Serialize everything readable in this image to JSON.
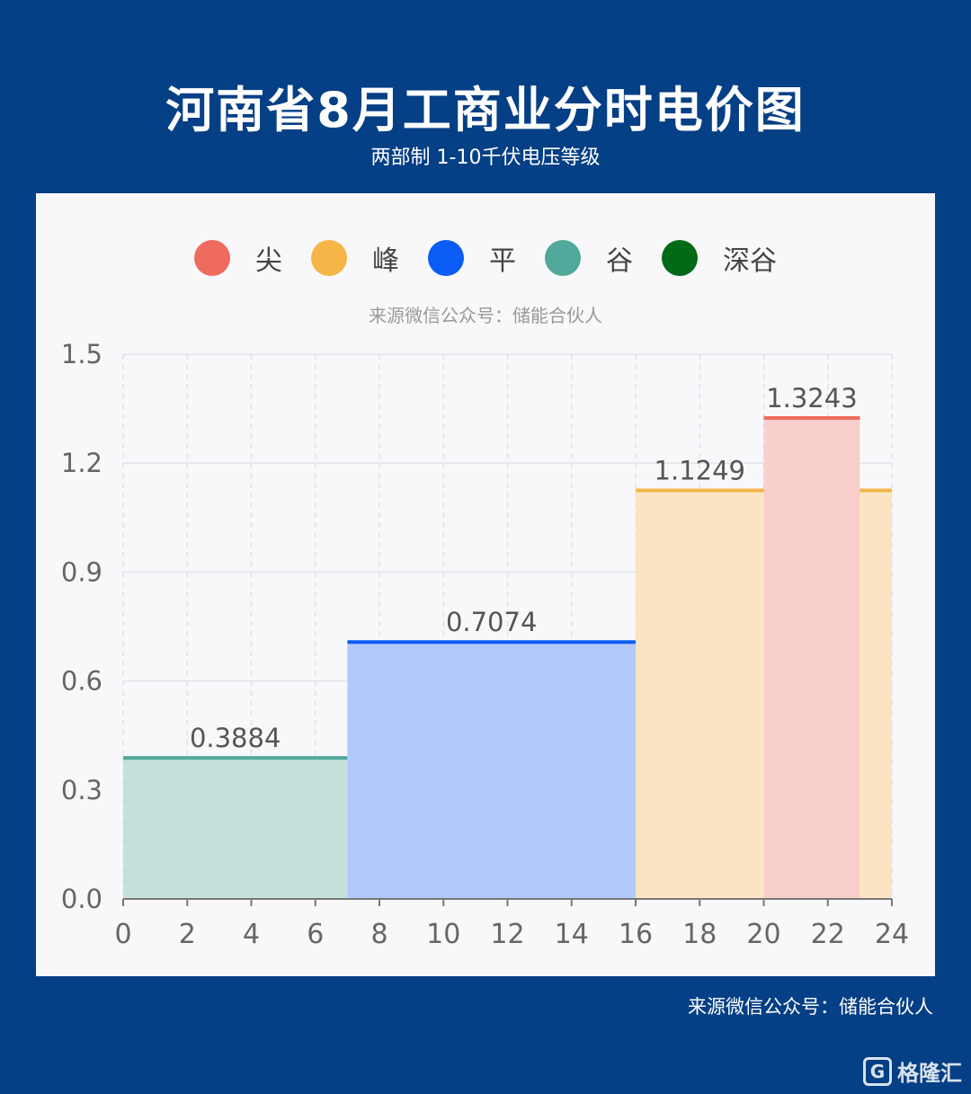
{
  "title": "河南省8月工商业分时电价图",
  "subtitle": "两部制 1-10千伏电压等级",
  "source_inner": "来源微信公众号：储能合伙人",
  "source_bottom": "来源微信公众号：储能合伙人",
  "watermark": {
    "logo": "G",
    "text": "格隆汇"
  },
  "legend": [
    {
      "label": "尖",
      "color": "#ef6b5e"
    },
    {
      "label": "峰",
      "color": "#f5b547"
    },
    {
      "label": "平",
      "color": "#0a5cf5"
    },
    {
      "label": "谷",
      "color": "#51a89b"
    },
    {
      "label": "深谷",
      "color": "#006a16"
    }
  ],
  "chart_data": {
    "type": "area",
    "step": true,
    "title": "河南省8月工商业分时电价图",
    "subtitle": "两部制 1-10千伏电压等级",
    "xlim": [
      0,
      24
    ],
    "ylim": [
      0,
      1.5
    ],
    "x_ticks": [
      0,
      2,
      4,
      6,
      8,
      10,
      12,
      14,
      16,
      18,
      20,
      22,
      24
    ],
    "y_ticks": [
      "0.0",
      "0.3",
      "0.6",
      "0.9",
      "1.2",
      "1.5"
    ],
    "grid": true,
    "legend_position": "top",
    "segments": [
      {
        "name": "谷",
        "start": 0,
        "end": 7,
        "value": 0.3884,
        "label": "0.3884",
        "line_color": "#51a89b",
        "fill_color": "#c6e1dc"
      },
      {
        "name": "平",
        "start": 7,
        "end": 16,
        "value": 0.7074,
        "label": "0.7074",
        "line_color": "#0a5cf5",
        "fill_color": "#b1c9fb"
      },
      {
        "name": "峰",
        "start": 16,
        "end": 20,
        "value": 1.1249,
        "label": "1.1249",
        "line_color": "#f5b547",
        "fill_color": "#fae4c4"
      },
      {
        "name": "尖",
        "start": 20,
        "end": 23,
        "value": 1.3243,
        "label": "1.3243",
        "line_color": "#ef6b5e",
        "fill_color": "#f9cfcd"
      },
      {
        "name": "峰",
        "start": 23,
        "end": 24,
        "value": 1.1249,
        "label": "",
        "line_color": "#f5b547",
        "fill_color": "#fae4c4"
      }
    ]
  }
}
